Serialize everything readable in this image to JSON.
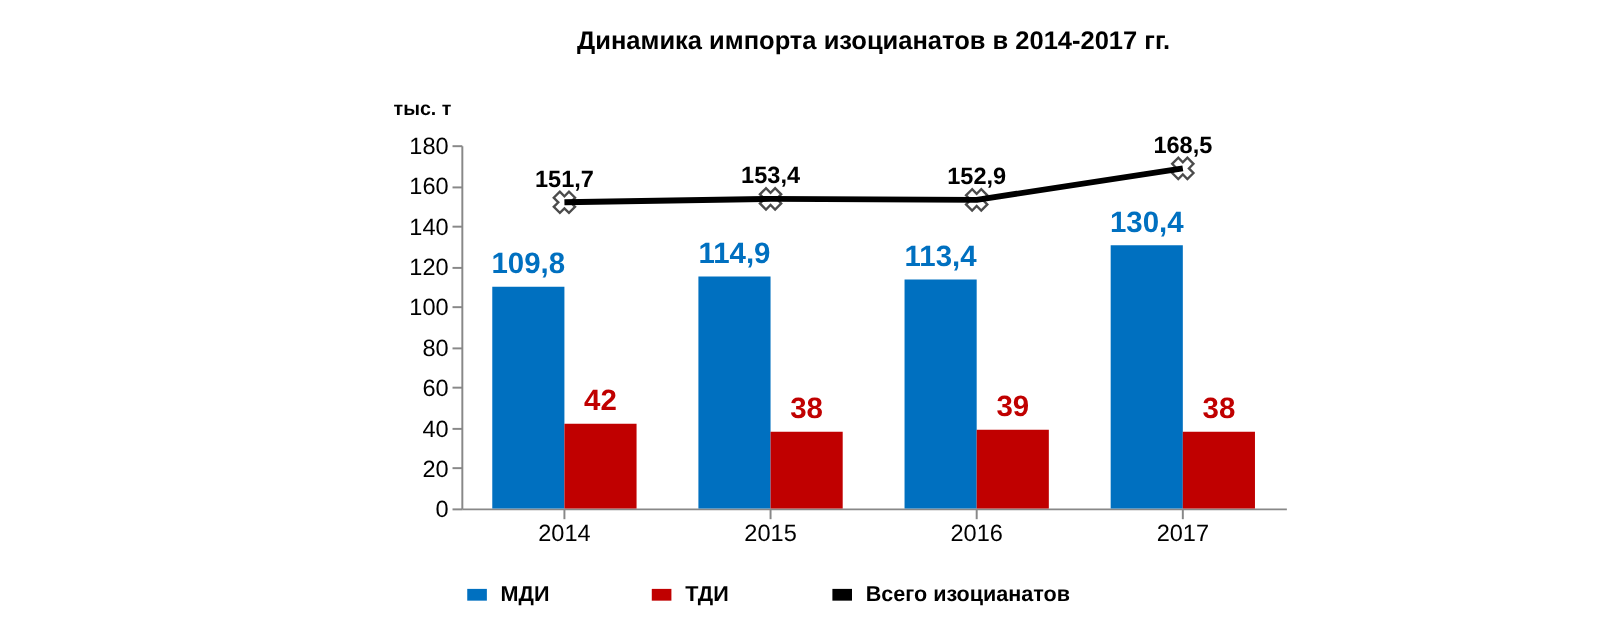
{
  "chart_data": {
    "type": "bar",
    "title": "Динамика импорта изоцианатов в 2014-2017 гг.",
    "ylabel": "тыс. т",
    "categories": [
      "2014",
      "2015",
      "2016",
      "2017"
    ],
    "series": [
      {
        "name": "МДИ",
        "color": "#0070c0",
        "values": [
          109.8,
          114.9,
          113.4,
          130.4
        ],
        "value_labels": [
          "109,8",
          "114,9",
          "113,4",
          "130,4"
        ]
      },
      {
        "name": "ТДИ",
        "color": "#c00000",
        "values": [
          42,
          38,
          39,
          38
        ],
        "value_labels": [
          "42",
          "38",
          "39",
          "38"
        ]
      },
      {
        "name": "Всего изоцианатов",
        "type": "line",
        "color": "#000000",
        "marker": "cross",
        "values": [
          151.7,
          153.4,
          152.9,
          168.5
        ],
        "value_labels": [
          "151,7",
          "153,4",
          "152,9",
          "168,5"
        ]
      }
    ],
    "ylim": [
      0,
      180
    ],
    "yticks": [
      0,
      20,
      40,
      60,
      80,
      100,
      120,
      140,
      160,
      180
    ],
    "grid": false,
    "legend": "bottom"
  }
}
